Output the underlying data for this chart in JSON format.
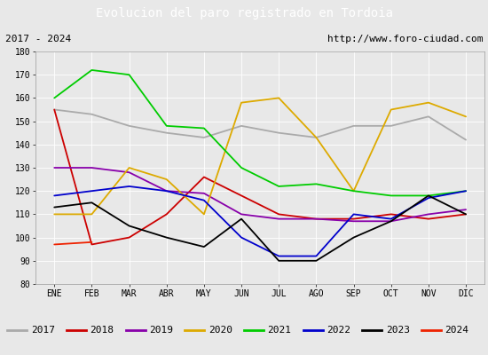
{
  "title": "Evolucion del paro registrado en Tordoia",
  "subtitle_left": "2017 - 2024",
  "subtitle_right": "http://www.foro-ciudad.com",
  "xlabel_months": [
    "ENE",
    "FEB",
    "MAR",
    "ABR",
    "MAY",
    "JUN",
    "JUL",
    "AGO",
    "SEP",
    "OCT",
    "NOV",
    "DIC"
  ],
  "ylim": [
    80,
    180
  ],
  "yticks": [
    80,
    90,
    100,
    110,
    120,
    130,
    140,
    150,
    160,
    170,
    180
  ],
  "series": {
    "2017": {
      "color": "#aaaaaa",
      "values": [
        155,
        153,
        148,
        145,
        143,
        148,
        145,
        143,
        148,
        148,
        152,
        142
      ]
    },
    "2018": {
      "color": "#cc0000",
      "values": [
        155,
        97,
        100,
        110,
        126,
        118,
        110,
        108,
        108,
        110,
        108,
        110
      ]
    },
    "2019": {
      "color": "#8800aa",
      "values": [
        130,
        130,
        128,
        120,
        119,
        110,
        108,
        108,
        107,
        107,
        110,
        112
      ]
    },
    "2020": {
      "color": "#ddaa00",
      "values": [
        110,
        110,
        130,
        125,
        110,
        158,
        160,
        143,
        120,
        155,
        158,
        152
      ]
    },
    "2021": {
      "color": "#00cc00",
      "values": [
        160,
        172,
        170,
        148,
        147,
        130,
        122,
        123,
        120,
        118,
        118,
        120
      ]
    },
    "2022": {
      "color": "#0000cc",
      "values": [
        118,
        120,
        122,
        120,
        116,
        100,
        92,
        92,
        110,
        108,
        117,
        120
      ]
    },
    "2023": {
      "color": "#000000",
      "values": [
        113,
        115,
        105,
        100,
        96,
        108,
        90,
        90,
        100,
        107,
        118,
        110
      ]
    },
    "2024": {
      "color": "#ee2200",
      "values": [
        97,
        98,
        null,
        null,
        null,
        null,
        null,
        null,
        null,
        null,
        null,
        null
      ]
    }
  },
  "background_color": "#e8e8e8",
  "title_bg_color": "#5b8dd9",
  "title_text_color": "#ffffff",
  "box_color": "#ffffff",
  "title_fontsize": 10,
  "subtitle_fontsize": 8,
  "tick_fontsize": 7,
  "legend_fontsize": 8
}
